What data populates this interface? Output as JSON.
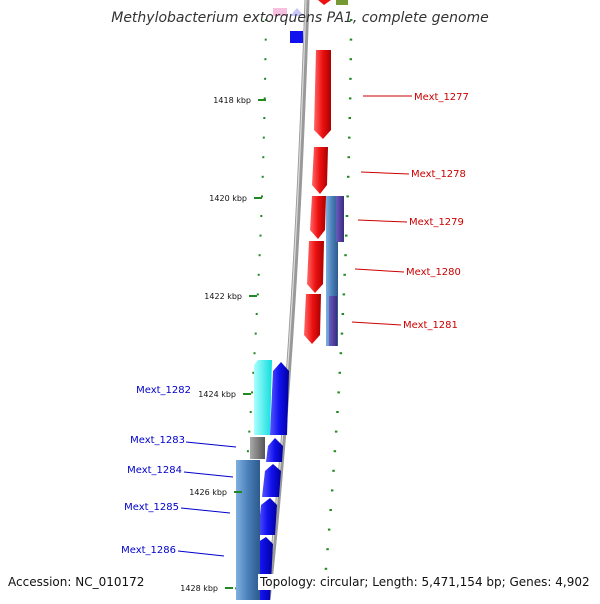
{
  "title": "Methylobacterium extorquens PA1, complete genome",
  "footer": {
    "accession": "Accession: NC_010172",
    "summary": "Topology: circular; Length: 5,471,154 bp; Genes: 4,902"
  },
  "kbp_labels": [
    "1418 kbp",
    "1420 kbp",
    "1422 kbp",
    "1424 kbp",
    "1426 kbp",
    "1428 kbp"
  ],
  "genes_forward": [
    "Mext_1277",
    "Mext_1278",
    "Mext_1279",
    "Mext_1280",
    "Mext_1281"
  ],
  "genes_reverse": [
    "Mext_1282",
    "Mext_1283",
    "Mext_1284",
    "Mext_1285",
    "Mext_1286"
  ],
  "colors": {
    "forward_cds": "#ee1111",
    "reverse_cds": "#1111ee",
    "forward_label": "#cc0000",
    "reverse_label": "#0000cc",
    "ticks": "#228822",
    "backbone": "#999999",
    "pfam": "#4a7fb8",
    "domain_purple": "#4b3c9a",
    "trna": "#22eeee",
    "gray_feature": "#777777"
  }
}
